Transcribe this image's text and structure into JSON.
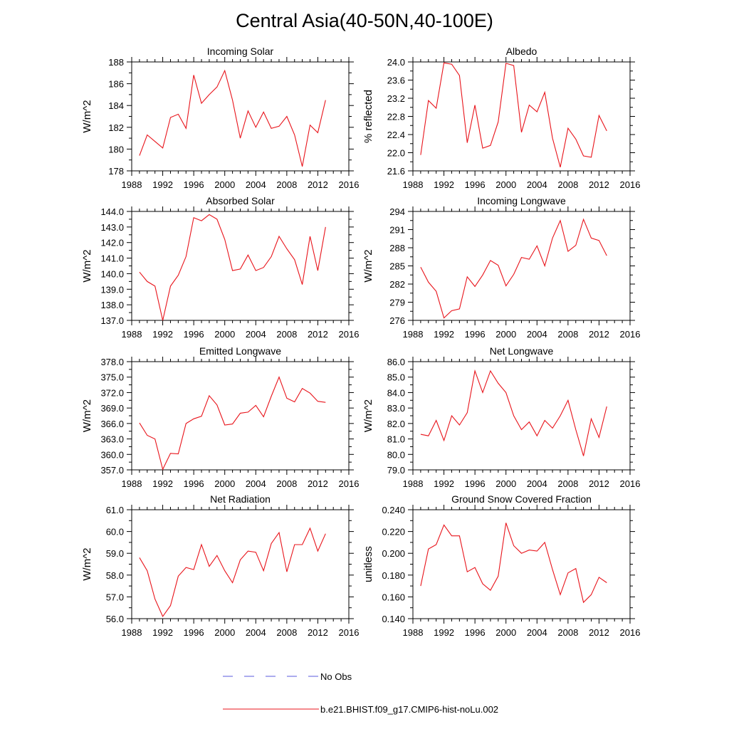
{
  "title": "Central Asia(40-50N,40-100E)",
  "colors": {
    "model": "#e8141b",
    "obs": "#5a5adc",
    "axis": "#000000"
  },
  "legend": {
    "obs_label": "No Obs",
    "model_label": "b.e21.BHIST.f09_g17.CMIP6-hist-noLu.002"
  },
  "chart_data": [
    {
      "type": "line",
      "title": "Incoming Solar",
      "ylabel": "W/m^2",
      "xlim": [
        1988,
        2016
      ],
      "ylim": [
        178,
        188
      ],
      "yticks": [
        178,
        180,
        182,
        184,
        186,
        188
      ],
      "ytick_labels": [
        "178",
        "180",
        "182",
        "184",
        "186",
        "188"
      ],
      "xticks": [
        1988,
        1992,
        1996,
        2000,
        2004,
        2008,
        2012,
        2016
      ],
      "x": [
        1989,
        1990,
        1991,
        1992,
        1993,
        1994,
        1995,
        1996,
        1997,
        1998,
        1999,
        2000,
        2001,
        2002,
        2003,
        2004,
        2005,
        2006,
        2007,
        2008,
        2009,
        2010,
        2011,
        2012,
        2013
      ],
      "series": [
        {
          "name": "b.e21.BHIST.f09_g17.CMIP6-hist-noLu.002",
          "values": [
            179.4,
            181.3,
            180.7,
            180.1,
            182.9,
            183.2,
            181.9,
            186.8,
            184.2,
            185.0,
            185.7,
            187.2,
            184.5,
            181.0,
            183.5,
            182.0,
            183.4,
            181.9,
            182.1,
            183.0,
            181.3,
            178.4,
            182.2,
            181.5,
            184.5
          ]
        }
      ]
    },
    {
      "type": "line",
      "title": "Albedo",
      "ylabel": "% reflected",
      "xlim": [
        1988,
        2016
      ],
      "ylim": [
        21.6,
        24.0
      ],
      "yticks": [
        21.6,
        22.0,
        22.4,
        22.8,
        23.2,
        23.6,
        24.0
      ],
      "ytick_labels": [
        "21.6",
        "22.0",
        "22.4",
        "22.8",
        "23.2",
        "23.6",
        "24.0"
      ],
      "xticks": [
        1988,
        1992,
        1996,
        2000,
        2004,
        2008,
        2012,
        2016
      ],
      "x": [
        1989,
        1990,
        1991,
        1992,
        1993,
        1994,
        1995,
        1996,
        1997,
        1998,
        1999,
        2000,
        2001,
        2002,
        2003,
        2004,
        2005,
        2006,
        2007,
        2008,
        2009,
        2010,
        2011,
        2012,
        2013
      ],
      "series": [
        {
          "name": "b.e21.BHIST.f09_g17.CMIP6-hist-noLu.002",
          "values": [
            21.95,
            23.15,
            22.98,
            23.98,
            23.95,
            23.7,
            22.22,
            23.05,
            22.1,
            22.16,
            22.68,
            23.97,
            23.92,
            22.45,
            23.05,
            22.9,
            23.33,
            22.32,
            21.68,
            22.54,
            22.3,
            21.93,
            21.9,
            22.82,
            22.48
          ]
        }
      ]
    },
    {
      "type": "line",
      "title": "Absorbed Solar",
      "ylabel": "W/m^2",
      "xlim": [
        1988,
        2016
      ],
      "ylim": [
        137,
        144
      ],
      "yticks": [
        137,
        138,
        139,
        140,
        141,
        142,
        143,
        144
      ],
      "ytick_labels": [
        "137.0",
        "138.0",
        "139.0",
        "140.0",
        "141.0",
        "142.0",
        "143.0",
        "144.0"
      ],
      "xticks": [
        1988,
        1992,
        1996,
        2000,
        2004,
        2008,
        2012,
        2016
      ],
      "x": [
        1989,
        1990,
        1991,
        1992,
        1993,
        1994,
        1995,
        1996,
        1997,
        1998,
        1999,
        2000,
        2001,
        2002,
        2003,
        2004,
        2005,
        2006,
        2007,
        2008,
        2009,
        2010,
        2011,
        2012,
        2013
      ],
      "series": [
        {
          "name": "b.e21.BHIST.f09_g17.CMIP6-hist-noLu.002",
          "values": [
            140.1,
            139.5,
            139.2,
            137.0,
            139.2,
            139.9,
            141.1,
            143.6,
            143.4,
            143.8,
            143.5,
            142.2,
            140.2,
            140.3,
            141.2,
            140.2,
            140.4,
            141.1,
            142.4,
            141.6,
            140.9,
            139.3,
            142.4,
            140.2,
            143.0
          ]
        }
      ]
    },
    {
      "type": "line",
      "title": "Incoming Longwave",
      "ylabel": "W/m^2",
      "xlim": [
        1988,
        2016
      ],
      "ylim": [
        276,
        294
      ],
      "yticks": [
        276,
        279,
        282,
        285,
        288,
        291,
        294
      ],
      "ytick_labels": [
        "276",
        "279",
        "282",
        "285",
        "288",
        "291",
        "294"
      ],
      "xticks": [
        1988,
        1992,
        1996,
        2000,
        2004,
        2008,
        2012,
        2016
      ],
      "x": [
        1989,
        1990,
        1991,
        1992,
        1993,
        1994,
        1995,
        1996,
        1997,
        1998,
        1999,
        2000,
        2001,
        2002,
        2003,
        2004,
        2005,
        2006,
        2007,
        2008,
        2009,
        2010,
        2011,
        2012,
        2013
      ],
      "series": [
        {
          "name": "b.e21.BHIST.f09_g17.CMIP6-hist-noLu.002",
          "values": [
            284.8,
            282.3,
            280.8,
            276.4,
            277.6,
            277.9,
            283.2,
            281.6,
            283.5,
            285.9,
            285.1,
            281.7,
            283.6,
            286.4,
            286.1,
            288.3,
            285.0,
            289.6,
            292.5,
            287.4,
            288.4,
            292.7,
            289.6,
            289.2,
            286.7
          ]
        }
      ]
    },
    {
      "type": "line",
      "title": "Emitted Longwave",
      "ylabel": "W/m^2",
      "xlim": [
        1988,
        2016
      ],
      "ylim": [
        357,
        378
      ],
      "yticks": [
        357,
        360,
        363,
        366,
        369,
        372,
        375,
        378
      ],
      "ytick_labels": [
        "357.0",
        "360.0",
        "363.0",
        "366.0",
        "369.0",
        "372.0",
        "375.0",
        "378.0"
      ],
      "xticks": [
        1988,
        1992,
        1996,
        2000,
        2004,
        2008,
        2012,
        2016
      ],
      "x": [
        1989,
        1990,
        1991,
        1992,
        1993,
        1994,
        1995,
        1996,
        1997,
        1998,
        1999,
        2000,
        2001,
        2002,
        2003,
        2004,
        2005,
        2006,
        2007,
        2008,
        2009,
        2010,
        2011,
        2012,
        2013
      ],
      "series": [
        {
          "name": "b.e21.BHIST.f09_g17.CMIP6-hist-noLu.002",
          "values": [
            366.1,
            363.7,
            363.0,
            357.1,
            360.2,
            360.1,
            366.0,
            366.9,
            367.4,
            371.4,
            369.6,
            365.7,
            365.9,
            368.0,
            368.2,
            369.5,
            367.3,
            371.3,
            375.0,
            370.9,
            370.2,
            372.8,
            371.9,
            370.3,
            370.1
          ]
        }
      ]
    },
    {
      "type": "line",
      "title": "Net Longwave",
      "ylabel": "W/m^2",
      "xlim": [
        1988,
        2016
      ],
      "ylim": [
        79,
        86
      ],
      "yticks": [
        79,
        80,
        81,
        82,
        83,
        84,
        85,
        86
      ],
      "ytick_labels": [
        "79.0",
        "80.0",
        "81.0",
        "82.0",
        "83.0",
        "84.0",
        "85.0",
        "86.0"
      ],
      "xticks": [
        1988,
        1992,
        1996,
        2000,
        2004,
        2008,
        2012,
        2016
      ],
      "x": [
        1989,
        1990,
        1991,
        1992,
        1993,
        1994,
        1995,
        1996,
        1997,
        1998,
        1999,
        2000,
        2001,
        2002,
        2003,
        2004,
        2005,
        2006,
        2007,
        2008,
        2009,
        2010,
        2011,
        2012,
        2013
      ],
      "series": [
        {
          "name": "b.e21.BHIST.f09_g17.CMIP6-hist-noLu.002",
          "values": [
            81.3,
            81.2,
            82.2,
            80.9,
            82.5,
            81.9,
            82.7,
            85.4,
            84.0,
            85.4,
            84.6,
            84.0,
            82.5,
            81.6,
            82.1,
            81.2,
            82.2,
            81.7,
            82.5,
            83.5,
            81.6,
            79.9,
            82.3,
            81.1,
            83.1
          ]
        }
      ]
    },
    {
      "type": "line",
      "title": "Net Radiation",
      "ylabel": "W/m^2",
      "xlim": [
        1988,
        2016
      ],
      "ylim": [
        56,
        61
      ],
      "yticks": [
        56,
        57,
        58,
        59,
        60,
        61
      ],
      "ytick_labels": [
        "56.0",
        "57.0",
        "58.0",
        "59.0",
        "60.0",
        "61.0"
      ],
      "xticks": [
        1988,
        1992,
        1996,
        2000,
        2004,
        2008,
        2012,
        2016
      ],
      "x": [
        1989,
        1990,
        1991,
        1992,
        1993,
        1994,
        1995,
        1996,
        1997,
        1998,
        1999,
        2000,
        2001,
        2002,
        2003,
        2004,
        2005,
        2006,
        2007,
        2008,
        2009,
        2010,
        2011,
        2012,
        2013
      ],
      "series": [
        {
          "name": "b.e21.BHIST.f09_g17.CMIP6-hist-noLu.002",
          "values": [
            58.8,
            58.2,
            56.9,
            56.1,
            56.6,
            57.95,
            58.35,
            58.25,
            59.4,
            58.4,
            58.9,
            58.2,
            57.65,
            58.7,
            59.1,
            59.05,
            58.2,
            59.45,
            59.95,
            58.15,
            59.4,
            59.4,
            60.15,
            59.1,
            59.9
          ]
        }
      ]
    },
    {
      "type": "line",
      "title": "Ground Snow Covered Fraction",
      "ylabel": "unitless",
      "xlim": [
        1988,
        2016
      ],
      "ylim": [
        0.14,
        0.24
      ],
      "yticks": [
        0.14,
        0.16,
        0.18,
        0.2,
        0.22,
        0.24
      ],
      "ytick_labels": [
        "0.140",
        "0.160",
        "0.180",
        "0.200",
        "0.220",
        "0.240"
      ],
      "xticks": [
        1988,
        1992,
        1996,
        2000,
        2004,
        2008,
        2012,
        2016
      ],
      "x": [
        1989,
        1990,
        1991,
        1992,
        1993,
        1994,
        1995,
        1996,
        1997,
        1998,
        1999,
        2000,
        2001,
        2002,
        2003,
        2004,
        2005,
        2006,
        2007,
        2008,
        2009,
        2010,
        2011,
        2012,
        2013
      ],
      "series": [
        {
          "name": "b.e21.BHIST.f09_g17.CMIP6-hist-noLu.002",
          "values": [
            0.17,
            0.204,
            0.208,
            0.226,
            0.216,
            0.216,
            0.183,
            0.187,
            0.172,
            0.166,
            0.179,
            0.228,
            0.207,
            0.2,
            0.203,
            0.202,
            0.21,
            0.185,
            0.162,
            0.182,
            0.186,
            0.155,
            0.162,
            0.178,
            0.173
          ]
        }
      ]
    }
  ]
}
